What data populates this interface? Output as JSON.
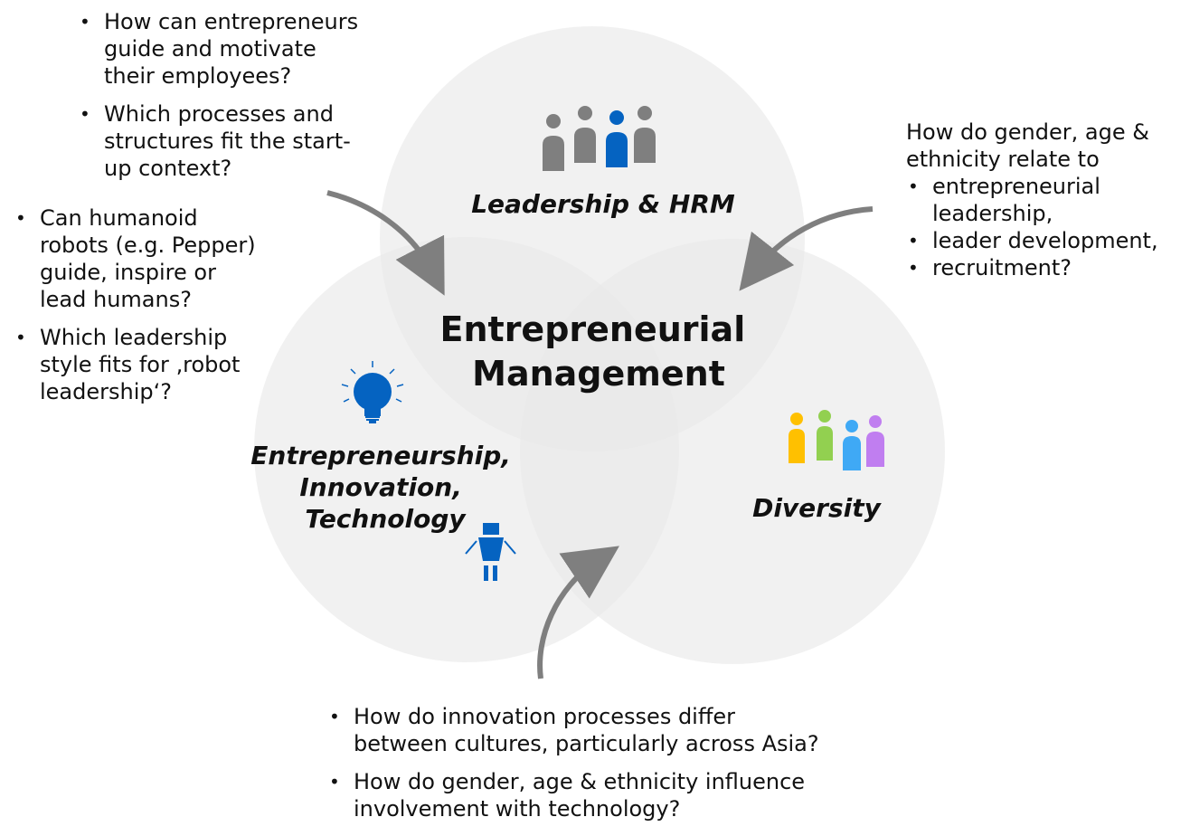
{
  "center_label": [
    "Entrepreneurial",
    "Management"
  ],
  "circles": {
    "leadership": {
      "label": "Leadership & HRM",
      "icon": "people-group-icon"
    },
    "entrepreneurship": {
      "label": [
        "Entrepreneurship,",
        "Innovation,",
        "Technology"
      ],
      "icons": [
        "lightbulb-icon",
        "robot-icon"
      ]
    },
    "diversity": {
      "label": "Diversity",
      "icon": "diverse-people-icon"
    }
  },
  "questions": {
    "top_left": [
      [
        "How can entrepreneurs",
        "guide and motivate",
        "their employees?"
      ],
      [
        "Which processes and",
        "structures fit the start-",
        "up context?"
      ]
    ],
    "left": [
      [
        "Can humanoid",
        "robots (e.g. Pepper)",
        "guide, inspire or",
        "lead humans?"
      ],
      [
        "Which leadership",
        "style fits for ‚robot",
        "leadership‘?"
      ]
    ],
    "right": {
      "intro": [
        "How do gender, age &",
        "ethnicity relate to"
      ],
      "items": [
        [
          "entrepreneurial",
          "leadership,"
        ],
        [
          "leader development,"
        ],
        [
          "recruitment?"
        ]
      ]
    },
    "bottom": [
      [
        "How do innovation processes differ",
        "between cultures, particularly across Asia?"
      ],
      [
        "How do gender, age & ethnicity influence",
        "involvement with technology?"
      ]
    ]
  },
  "colors": {
    "circle_fill": "#e8e8e8",
    "arrow": "#7f7f7f",
    "icon_grey": "#7f7f7f",
    "icon_blue": "#0563c1",
    "diversity_yellow": "#ffc000",
    "diversity_green": "#92d050",
    "diversity_blue": "#3fa9f5",
    "diversity_purple": "#c07ef0"
  }
}
